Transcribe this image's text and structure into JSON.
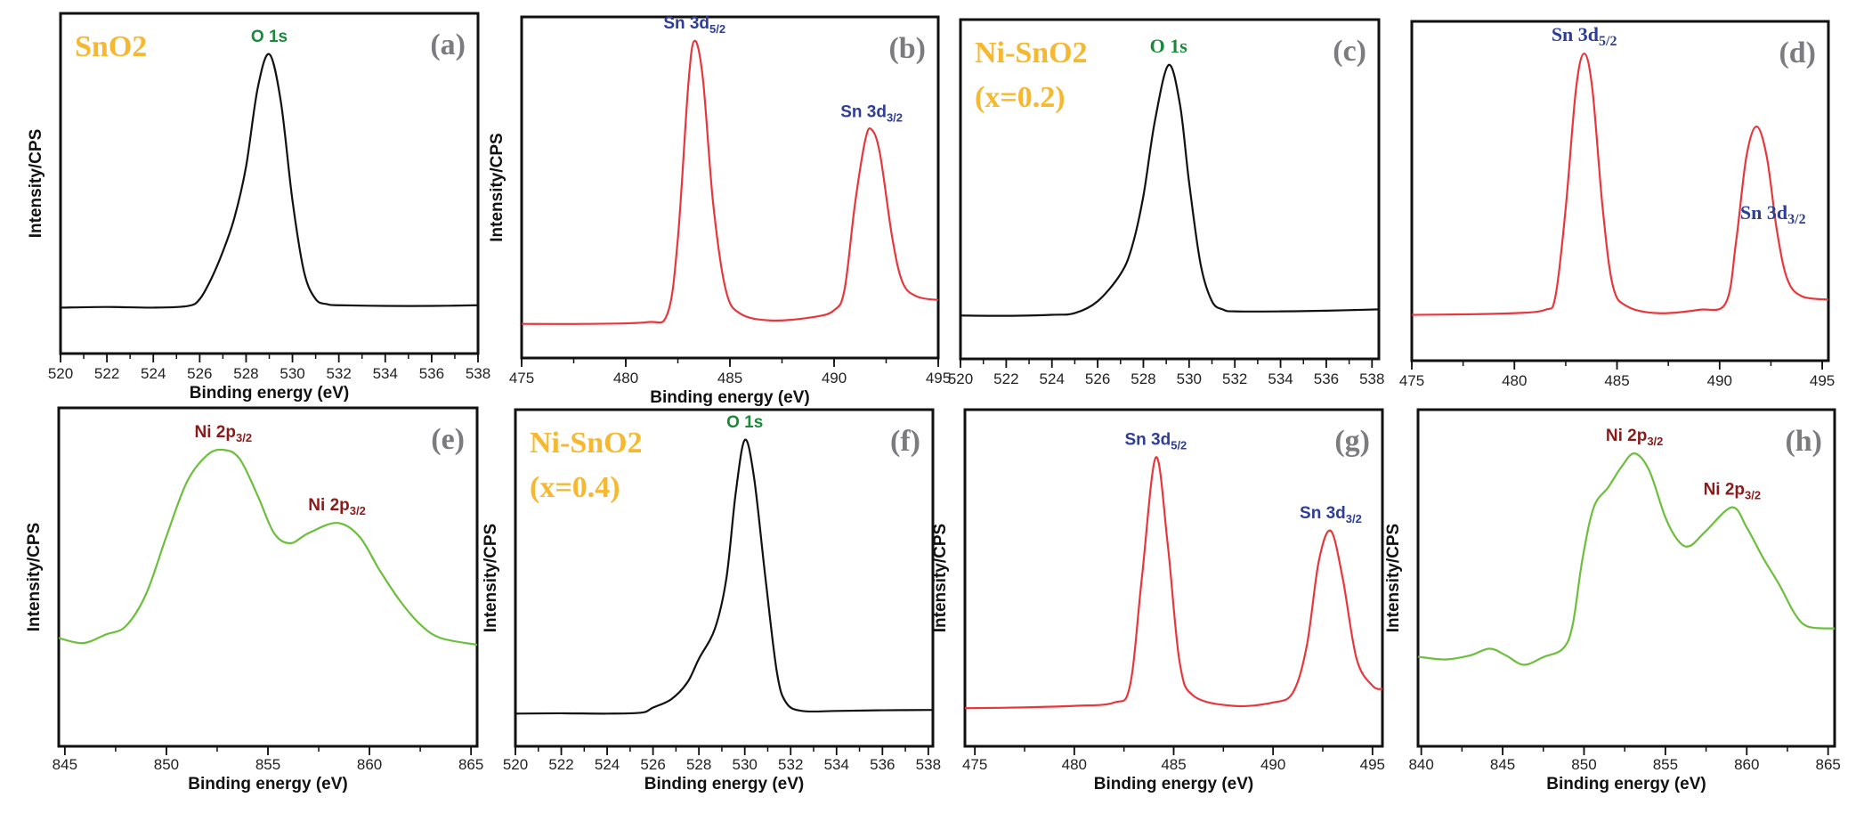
{
  "colors": {
    "black_curve": "#111111",
    "red_curve": "#e8373c",
    "green_curve": "#6cbf3c",
    "sample_label": "#f5b830",
    "o1s_label": "#1a8a3a",
    "sn_label": "#2e3d95",
    "ni_label": "#8b1a1a",
    "panel_letter": "#7b7b80"
  },
  "chart_data": [
    {
      "panel": "(a)",
      "type": "line",
      "sample": [
        "SnO2"
      ],
      "color": "black",
      "xlabel": "Binding energy (eV)",
      "ylabel": "Intensity/CPS",
      "xlim": [
        520,
        538
      ],
      "ylim": [
        0,
        1
      ],
      "xticks": [
        520,
        522,
        524,
        526,
        528,
        530,
        532,
        534,
        536,
        538
      ],
      "minor_step": 1,
      "annotations": [
        {
          "text": "O 1s",
          "sub": "",
          "x": 529.0,
          "color": "green"
        }
      ],
      "x": [
        520,
        522,
        524,
        525.5,
        526,
        526.5,
        527,
        527.5,
        528,
        528.5,
        529,
        529.5,
        530,
        530.5,
        531,
        531.5,
        532,
        534,
        536,
        538
      ],
      "y": [
        0.135,
        0.137,
        0.135,
        0.14,
        0.16,
        0.22,
        0.3,
        0.4,
        0.55,
        0.78,
        0.88,
        0.74,
        0.45,
        0.24,
        0.16,
        0.145,
        0.142,
        0.14,
        0.14,
        0.142
      ]
    },
    {
      "panel": "(b)",
      "type": "line",
      "sample": [],
      "color": "red",
      "xlabel": "Binding energy (eV)",
      "ylabel": "Intensity/CPS",
      "xlim": [
        475,
        495
      ],
      "ylim": [
        0,
        1
      ],
      "xticks": [
        475,
        480,
        485,
        490,
        495
      ],
      "minor_step": 2.5,
      "annotations": [
        {
          "text": "Sn 3d",
          "sub": "5/2",
          "x": 483.3,
          "color": "blue"
        },
        {
          "text": "Sn 3d",
          "sub": "3/2",
          "x": 491.8,
          "color": "blue"
        }
      ],
      "x": [
        475,
        478,
        481,
        482,
        482.5,
        483,
        483.3,
        483.7,
        484.2,
        484.8,
        485.5,
        487,
        489,
        490,
        490.5,
        491,
        491.5,
        491.8,
        492.2,
        492.8,
        493.3,
        494,
        495
      ],
      "y": [
        0.1,
        0.1,
        0.105,
        0.13,
        0.35,
        0.8,
        0.93,
        0.82,
        0.45,
        0.2,
        0.13,
        0.11,
        0.12,
        0.14,
        0.2,
        0.45,
        0.64,
        0.67,
        0.6,
        0.35,
        0.22,
        0.18,
        0.17
      ]
    },
    {
      "panel": "(c)",
      "type": "line",
      "sample": [
        "Ni-SnO2",
        "(x=0.2)"
      ],
      "color": "black",
      "xlabel": "",
      "ylabel": "",
      "xlim": [
        520,
        538.3
      ],
      "ylim": [
        0,
        1
      ],
      "xticks": [
        520,
        522,
        524,
        526,
        528,
        530,
        532,
        534,
        536,
        538
      ],
      "minor_step": 1,
      "annotations": [
        {
          "text": "O 1s",
          "sub": "",
          "x": 529.1,
          "color": "green"
        }
      ],
      "x": [
        520,
        522,
        524,
        525,
        526,
        527,
        527.5,
        528,
        528.5,
        529.1,
        529.6,
        530,
        530.5,
        531,
        531.5,
        532,
        534,
        536,
        538.3
      ],
      "y": [
        0.128,
        0.127,
        0.13,
        0.135,
        0.17,
        0.25,
        0.33,
        0.48,
        0.7,
        0.866,
        0.75,
        0.52,
        0.28,
        0.17,
        0.145,
        0.14,
        0.14,
        0.142,
        0.146
      ]
    },
    {
      "panel": "(d)",
      "type": "line",
      "sample": [],
      "color": "red",
      "xlabel": "",
      "ylabel": "",
      "xlim": [
        475,
        495.3
      ],
      "ylim": [
        0,
        1
      ],
      "xticks": [
        475,
        480,
        485,
        490,
        495
      ],
      "minor_step": 2.5,
      "annotations": [
        {
          "text": "Sn 3d",
          "sub": "5/2",
          "x": 483.4,
          "color": "blue"
        },
        {
          "text": "Sn 3d",
          "sub": "3/2",
          "x": 492.6,
          "color": "blue"
        }
      ],
      "x": [
        475,
        478,
        480,
        481.5,
        482,
        482.5,
        483,
        483.4,
        483.8,
        484.3,
        484.8,
        485.5,
        487,
        489,
        490.3,
        490.8,
        491.3,
        491.8,
        492.3,
        492.8,
        493.3,
        494,
        495.3
      ],
      "y": [
        0.135,
        0.137,
        0.14,
        0.15,
        0.19,
        0.45,
        0.8,
        0.905,
        0.8,
        0.45,
        0.22,
        0.16,
        0.14,
        0.15,
        0.17,
        0.35,
        0.6,
        0.69,
        0.6,
        0.38,
        0.24,
        0.19,
        0.18
      ]
    },
    {
      "panel": "(e)",
      "type": "line",
      "sample": [],
      "color": "green",
      "xlabel": "Binding energy (eV)",
      "ylabel": "Intensity/CPS",
      "xlim": [
        844.7,
        865.3
      ],
      "ylim": [
        0,
        1
      ],
      "xticks": [
        845,
        850,
        855,
        860,
        865
      ],
      "minor_step": 2.5,
      "annotations": [
        {
          "text": "Ni 2p",
          "sub": "3/2",
          "x": 852.8,
          "color": "darkred"
        },
        {
          "text": "Ni 2p",
          "sub": "3/2",
          "x": 858.4,
          "color": "darkred"
        }
      ],
      "x": [
        844.7,
        845.9,
        847,
        848,
        849,
        850,
        851,
        852,
        852.8,
        853.6,
        854.5,
        855.3,
        856.1,
        857,
        858.4,
        859.5,
        860.5,
        861.5,
        862.5,
        863.5,
        865.3
      ],
      "y": [
        0.32,
        0.305,
        0.33,
        0.355,
        0.45,
        0.62,
        0.78,
        0.86,
        0.876,
        0.85,
        0.74,
        0.63,
        0.6,
        0.63,
        0.66,
        0.62,
        0.52,
        0.43,
        0.36,
        0.32,
        0.3
      ]
    },
    {
      "panel": "(f)",
      "type": "line",
      "sample": [
        "Ni-SnO2",
        "(x=0.4)"
      ],
      "color": "black",
      "xlabel": "Binding energy (eV)",
      "ylabel": "Intensity/CPS",
      "xlim": [
        520,
        538.2
      ],
      "ylim": [
        0,
        1
      ],
      "xticks": [
        520,
        522,
        524,
        526,
        528,
        530,
        532,
        534,
        536,
        538
      ],
      "minor_step": 1,
      "annotations": [
        {
          "text": "O 1s",
          "sub": "",
          "x": 530.0,
          "color": "green"
        }
      ],
      "x": [
        520,
        522,
        524,
        525.5,
        526,
        526.8,
        527.5,
        528,
        528.7,
        529.2,
        529.6,
        530,
        530.4,
        530.9,
        531.4,
        531.8,
        532.5,
        534,
        536,
        538.2
      ],
      "y": [
        0.097,
        0.098,
        0.097,
        0.1,
        0.115,
        0.14,
        0.19,
        0.26,
        0.35,
        0.5,
        0.75,
        0.91,
        0.8,
        0.5,
        0.22,
        0.13,
        0.105,
        0.105,
        0.107,
        0.108
      ]
    },
    {
      "panel": "(g)",
      "type": "line",
      "sample": [],
      "color": "red",
      "xlabel": "Binding energy (eV)",
      "ylabel": "Intensity/CPS",
      "xlim": [
        474.5,
        495.5
      ],
      "ylim": [
        0,
        1
      ],
      "xticks": [
        475,
        480,
        485,
        490,
        495
      ],
      "minor_step": 2.5,
      "annotations": [
        {
          "text": "Sn 3d",
          "sub": "5/2",
          "x": 484.1,
          "color": "blue"
        },
        {
          "text": "Sn 3d",
          "sub": "3/2",
          "x": 492.9,
          "color": "blue"
        }
      ],
      "x": [
        474.5,
        477,
        480,
        482,
        482.8,
        483.4,
        484.1,
        484.7,
        485.3,
        486,
        488,
        490,
        491,
        491.7,
        492.3,
        492.9,
        493.5,
        494.2,
        495,
        495.5
      ],
      "y": [
        0.113,
        0.115,
        0.12,
        0.13,
        0.18,
        0.5,
        0.858,
        0.6,
        0.25,
        0.15,
        0.12,
        0.13,
        0.16,
        0.3,
        0.55,
        0.64,
        0.5,
        0.26,
        0.18,
        0.17
      ]
    },
    {
      "panel": "(h)",
      "type": "line",
      "sample": [],
      "color": "green",
      "xlabel": "Binding energy (eV)",
      "ylabel": "Intensity/CPS",
      "xlim": [
        839.8,
        865.4
      ],
      "ylim": [
        0,
        1
      ],
      "xticks": [
        840,
        845,
        850,
        855,
        860,
        865
      ],
      "minor_step": 2.5,
      "annotations": [
        {
          "text": "Ni 2p",
          "sub": "3/2",
          "x": 853.1,
          "color": "darkred"
        },
        {
          "text": "Ni 2p",
          "sub": "3/2",
          "x": 859.1,
          "color": "darkred"
        }
      ],
      "x": [
        839.8,
        841.5,
        843,
        844.2,
        845.2,
        846.3,
        847.5,
        848.7,
        849.3,
        849.9,
        850.6,
        851.5,
        852.3,
        853.1,
        854,
        855,
        855.8,
        856.5,
        857.5,
        859.1,
        860,
        861,
        862,
        863,
        863.8,
        865.4
      ],
      "y": [
        0.266,
        0.258,
        0.27,
        0.29,
        0.27,
        0.242,
        0.265,
        0.29,
        0.36,
        0.555,
        0.71,
        0.77,
        0.83,
        0.87,
        0.82,
        0.68,
        0.61,
        0.595,
        0.64,
        0.71,
        0.65,
        0.56,
        0.48,
        0.39,
        0.355,
        0.35
      ]
    }
  ]
}
